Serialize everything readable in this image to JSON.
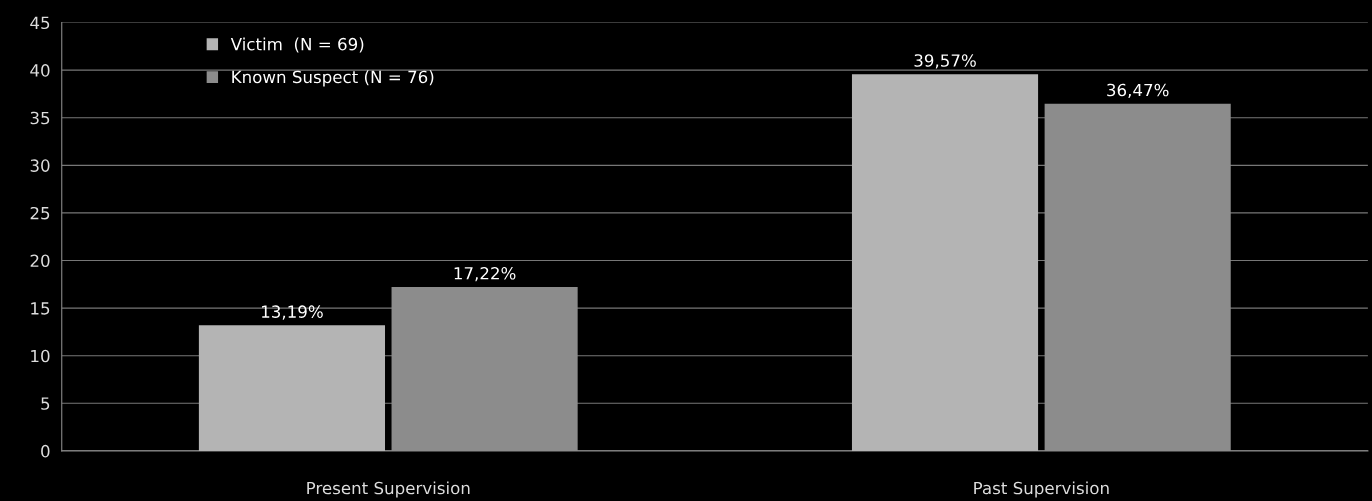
{
  "chart_data": {
    "type": "bar",
    "categories": [
      "Present Supervision",
      "Past Supervision"
    ],
    "series": [
      {
        "name": "Victim  (N = 69)",
        "color": "#b4b4b4",
        "values": [
          13.19,
          39.57
        ],
        "value_labels": [
          "13,19%",
          "39,57%"
        ]
      },
      {
        "name": "Known Suspect (N = 76)",
        "color": "#8c8c8c",
        "values": [
          17.22,
          36.47
        ],
        "value_labels": [
          "17,22%",
          "36,47%"
        ]
      }
    ],
    "ylim": [
      0,
      45
    ],
    "yticks": [
      0,
      5,
      10,
      15,
      20,
      25,
      30,
      35,
      40,
      45
    ],
    "grid": "y",
    "legend": "top left"
  }
}
